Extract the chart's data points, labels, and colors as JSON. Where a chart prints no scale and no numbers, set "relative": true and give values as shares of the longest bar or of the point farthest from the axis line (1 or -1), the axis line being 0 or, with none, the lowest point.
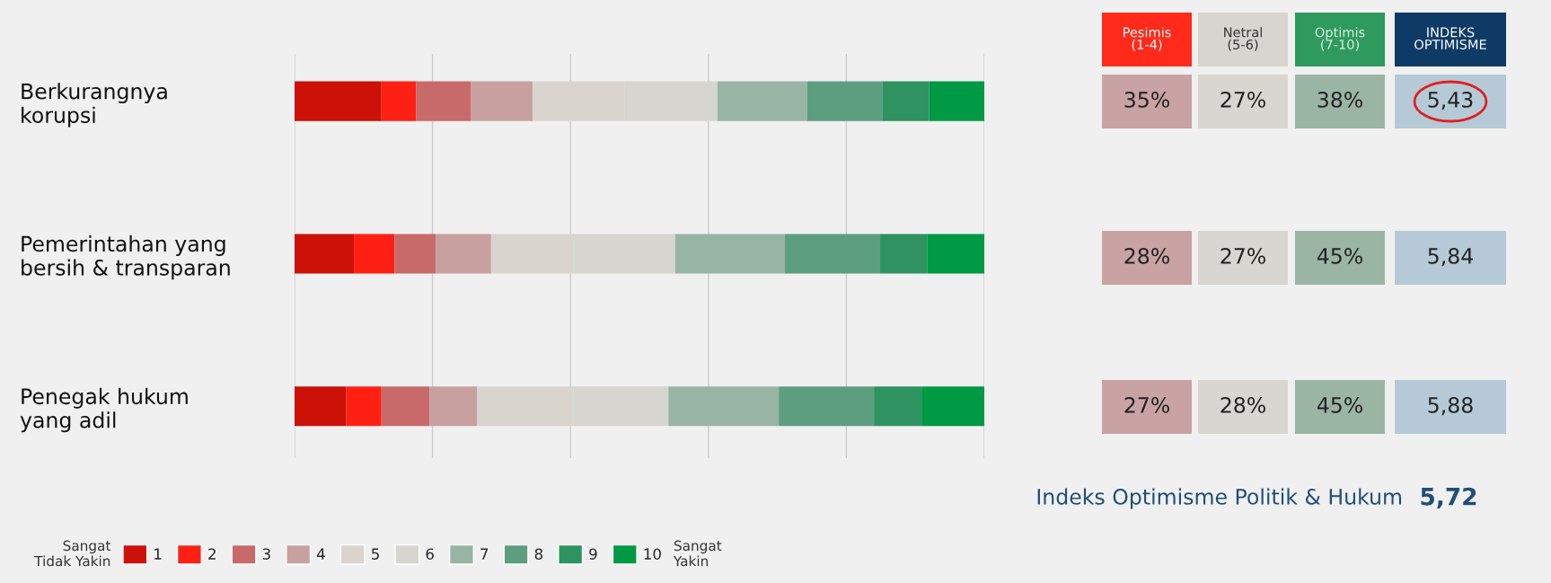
{
  "chart_data": {
    "type": "bar",
    "orientation": "horizontal",
    "stacked": true,
    "relative": true,
    "grid": "x",
    "legend": "bottom left",
    "tick_labels": "y",
    "categories": [
      "Berkurangnya\nkorupsi",
      "Pemerintahan yang\nbersih & transparan",
      "Penegak hukum\nyang adil"
    ],
    "series": [
      {
        "name": "1",
        "color": "#cc1109",
        "values": [
          0.126,
          0.086,
          0.075
        ]
      },
      {
        "name": "2",
        "color": "#ff2014",
        "values": [
          0.05,
          0.059,
          0.051
        ]
      },
      {
        "name": "3",
        "color": "#c86a6a",
        "values": [
          0.08,
          0.06,
          0.07
        ]
      },
      {
        "name": "4",
        "color": "#c8a0a0",
        "values": [
          0.089,
          0.08,
          0.069
        ]
      },
      {
        "name": "5",
        "color": "#d9d5ce",
        "values": [
          0.134,
          0.121,
          0.139
        ]
      },
      {
        "name": "6",
        "color": "#d6d5d0",
        "values": [
          0.134,
          0.146,
          0.138
        ]
      },
      {
        "name": "7",
        "color": "#98b4a5",
        "values": [
          0.13,
          0.159,
          0.16
        ]
      },
      {
        "name": "8",
        "color": "#5e9e80",
        "values": [
          0.109,
          0.138,
          0.138
        ]
      },
      {
        "name": "9",
        "color": "#2e9360",
        "values": [
          0.068,
          0.068,
          0.069
        ]
      },
      {
        "name": "10",
        "color": "#009944",
        "values": [
          0.08,
          0.083,
          0.091
        ]
      }
    ],
    "annotations": [
      "Pesimis\n(1-4)",
      "Netral\n(5-6)",
      "Optimis\n(7-10)",
      "INDEKS\nOPTIMISME",
      "35%",
      "27%",
      "38%",
      "5,43",
      "28%",
      "27%",
      "45%",
      "5,84",
      "27%",
      "28%",
      "45%",
      "5,88",
      "Indeks Optimisme Politik & Hukum",
      "5,72",
      "Sangat\nTidak Yakin",
      "Sangat\nYakin"
    ]
  }
}
